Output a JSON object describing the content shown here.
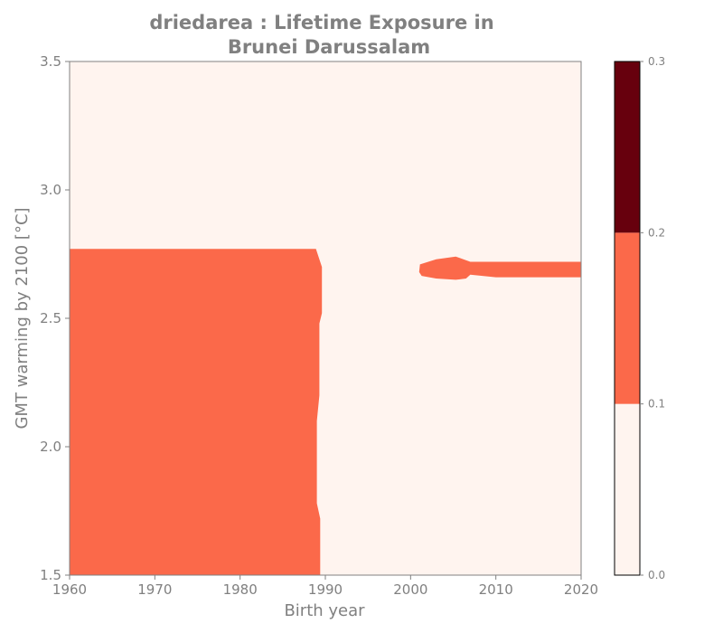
{
  "chart_data": {
    "type": "heatmap",
    "title_lines": [
      "driedarea : Lifetime Exposure in",
      "Brunei Darussalam"
    ],
    "xlabel": "Birth year",
    "ylabel": "GMT warming by 2100 [°C]",
    "xlim": [
      1960,
      2020
    ],
    "ylim": [
      1.5,
      3.5
    ],
    "xticks": [
      1960,
      1970,
      1980,
      1990,
      2000,
      2010,
      2020
    ],
    "xtick_labels": [
      "1960",
      "1970",
      "1980",
      "1990",
      "2000",
      "2010",
      "2020"
    ],
    "yticks": [
      1.5,
      2.0,
      2.5,
      3.0,
      3.5
    ],
    "ytick_labels": [
      "1.5",
      "2.0",
      "2.5",
      "3.0",
      "3.5"
    ],
    "colorbar": {
      "levels": [
        0.0,
        0.1,
        0.2,
        0.3
      ],
      "tick_labels": [
        "0.0",
        "0.1",
        "0.2",
        "0.3"
      ],
      "colors": [
        "#fff4ef",
        "#fb694a",
        "#67000d"
      ]
    },
    "background_level": 0,
    "regions": [
      {
        "name": "exposure-region-early-cohorts",
        "level": 1,
        "points": [
          [
            1960,
            1.5
          ],
          [
            1989.4,
            1.5
          ],
          [
            1989.4,
            1.72
          ],
          [
            1989.0,
            1.78
          ],
          [
            1989.0,
            2.1
          ],
          [
            1989.3,
            2.2
          ],
          [
            1989.3,
            2.48
          ],
          [
            1989.6,
            2.52
          ],
          [
            1989.6,
            2.7
          ],
          [
            1988.9,
            2.77
          ],
          [
            1960,
            2.77
          ]
        ]
      },
      {
        "name": "exposure-region-recent-cohorts",
        "level": 1,
        "points": [
          [
            2001.0,
            2.68
          ],
          [
            2001.1,
            2.71
          ],
          [
            2003.0,
            2.73
          ],
          [
            2005.3,
            2.74
          ],
          [
            2006.2,
            2.73
          ],
          [
            2007.0,
            2.72
          ],
          [
            2020,
            2.72
          ],
          [
            2020,
            2.66
          ],
          [
            2010.0,
            2.66
          ],
          [
            2007.0,
            2.67
          ],
          [
            2006.5,
            2.655
          ],
          [
            2005.3,
            2.65
          ],
          [
            2003.0,
            2.655
          ],
          [
            2001.3,
            2.665
          ],
          [
            2000.8,
            2.69
          ]
        ]
      }
    ]
  }
}
